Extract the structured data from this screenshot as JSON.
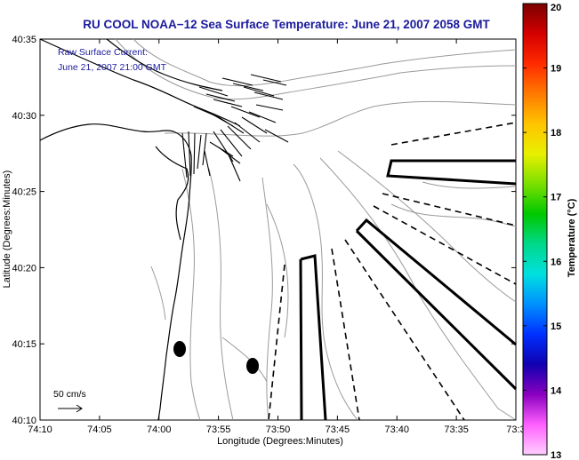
{
  "title": "RU COOL  NOAA−12  Sea Surface Temperature:  June 21, 2007 2058 GMT",
  "annotation": {
    "line1": "Raw Surface Current:",
    "line2": "June 21, 2007 21:00 GMT"
  },
  "scale_label": "50 cm/s",
  "axes": {
    "xlabel": "Longitude (Degrees:Minutes)",
    "ylabel": "Latitude (Degrees:Minutes)",
    "x_ticks": [
      "74:10",
      "74:05",
      "74:00",
      "73:55",
      "73:50",
      "73:45",
      "73:40",
      "73:35",
      "73:3"
    ],
    "y_ticks": [
      "40:35",
      "40:30",
      "40:25",
      "40:20",
      "40:15",
      "40:10"
    ]
  },
  "colorbar": {
    "label": "Temperature (°C)",
    "ticks": [
      "20",
      "19",
      "18",
      "17",
      "16",
      "15",
      "14",
      "13"
    ],
    "range": [
      13,
      20
    ],
    "colors": [
      "#7a0000",
      "#d40000",
      "#ff2a00",
      "#ff7a00",
      "#ffc400",
      "#e8f000",
      "#7ae000",
      "#00c800",
      "#00d88a",
      "#00e0e0",
      "#0090ff",
      "#0030ff",
      "#1000b0",
      "#8a00c0",
      "#ff60ff",
      "#ffd0ff"
    ]
  },
  "map": {
    "lon_range": [
      "74:10",
      "73:30"
    ],
    "lat_range": [
      "40:10",
      "40:35"
    ],
    "features": [
      "coastline",
      "bathymetry-contours",
      "surface-current-vectors",
      "transect-boxes",
      "dashed-transect-lines",
      "station-markers"
    ],
    "colors": {
      "coast": "#000000",
      "contour": "#9a9a9a",
      "vector": "#000000"
    }
  }
}
